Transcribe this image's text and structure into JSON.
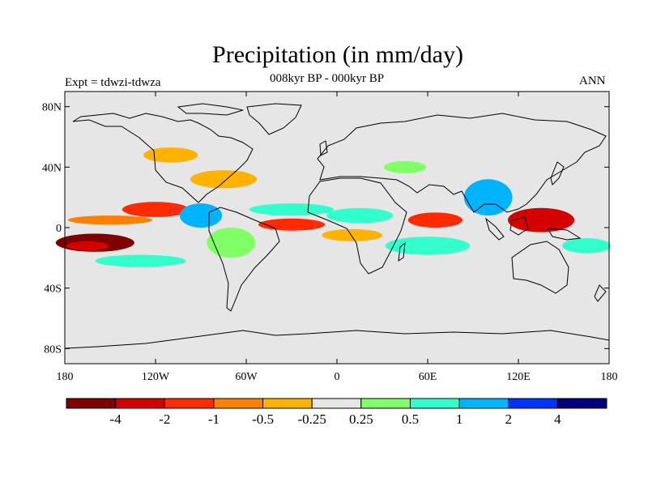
{
  "header": {
    "title": "Precipitation (in mm/day)",
    "subtitle": "008kyr BP - 000kyr BP",
    "left_label": "Expt = tdwzi-tdwza",
    "right_label": "ANN"
  },
  "map": {
    "lon_ticks": [
      {
        "lon": -180,
        "label": "180"
      },
      {
        "lon": -120,
        "label": "120W"
      },
      {
        "lon": -60,
        "label": "60W"
      },
      {
        "lon": 0,
        "label": "0"
      },
      {
        "lon": 60,
        "label": "60E"
      },
      {
        "lon": 120,
        "label": "120E"
      },
      {
        "lon": 180,
        "label": "180"
      }
    ],
    "lat_ticks": [
      {
        "lat": 80,
        "label": "80N"
      },
      {
        "lat": 40,
        "label": "40N"
      },
      {
        "lat": 0,
        "label": "0"
      },
      {
        "lat": -40,
        "label": "40S"
      },
      {
        "lat": -80,
        "label": "80S"
      }
    ],
    "background_color": "#e6e6e6",
    "anomaly_regions": [
      {
        "lon": -160,
        "lat": -10,
        "rlon": 26,
        "rlat": 6,
        "level": "dark-red"
      },
      {
        "lon": -165,
        "lat": -12,
        "rlon": 14,
        "rlat": 3,
        "level": "deep-red"
      },
      {
        "lon": -150,
        "lat": 5,
        "rlon": 28,
        "rlat": 3,
        "level": "orange-red"
      },
      {
        "lon": -130,
        "lat": -22,
        "rlon": 30,
        "rlat": 4,
        "level": "cyan"
      },
      {
        "lon": -120,
        "lat": 12,
        "rlon": 22,
        "rlat": 5,
        "level": "red"
      },
      {
        "lon": -90,
        "lat": 8,
        "rlon": 14,
        "rlat": 8,
        "level": "blue"
      },
      {
        "lon": -75,
        "lat": 32,
        "rlon": 22,
        "rlat": 6,
        "level": "orange"
      },
      {
        "lon": -70,
        "lat": -10,
        "rlon": 16,
        "rlat": 10,
        "level": "green"
      },
      {
        "lon": -30,
        "lat": 2,
        "rlon": 22,
        "rlat": 4,
        "level": "red"
      },
      {
        "lon": -30,
        "lat": 12,
        "rlon": 28,
        "rlat": 4,
        "level": "cyan"
      },
      {
        "lon": 15,
        "lat": 8,
        "rlon": 22,
        "rlat": 5,
        "level": "cyan"
      },
      {
        "lon": 10,
        "lat": -5,
        "rlon": 20,
        "rlat": 4,
        "level": "orange"
      },
      {
        "lon": 60,
        "lat": -12,
        "rlon": 28,
        "rlat": 6,
        "level": "cyan"
      },
      {
        "lon": 65,
        "lat": 5,
        "rlon": 18,
        "rlat": 5,
        "level": "red"
      },
      {
        "lon": 100,
        "lat": 20,
        "rlon": 16,
        "rlat": 12,
        "level": "blue"
      },
      {
        "lon": 135,
        "lat": 5,
        "rlon": 22,
        "rlat": 8,
        "level": "deep-red"
      },
      {
        "lon": 165,
        "lat": -12,
        "rlon": 16,
        "rlat": 5,
        "level": "cyan"
      },
      {
        "lon": -110,
        "lat": 48,
        "rlon": 18,
        "rlat": 5,
        "level": "orange"
      },
      {
        "lon": 45,
        "lat": 40,
        "rlon": 14,
        "rlat": 4,
        "level": "green"
      }
    ]
  },
  "colorbar": {
    "colors": [
      "#7f0000",
      "#d40000",
      "#ff2a00",
      "#ff7f00",
      "#ffb300",
      "#e6e6e6",
      "#80ff66",
      "#33ffcc",
      "#00b3ff",
      "#0033ff",
      "#00007f"
    ],
    "labels": [
      "-4",
      "-2",
      "-1",
      "-0.5",
      "-0.25",
      "0.25",
      "0.5",
      "1",
      "2",
      "4"
    ]
  },
  "level_colors": {
    "dark-red": "#7f0000",
    "deep-red": "#d40000",
    "red": "#ff2a00",
    "orange-red": "#ff7f00",
    "orange": "#ffb300",
    "green": "#80ff66",
    "cyan": "#33ffcc",
    "blue": "#00b3ff",
    "dark-blue": "#0033ff"
  }
}
